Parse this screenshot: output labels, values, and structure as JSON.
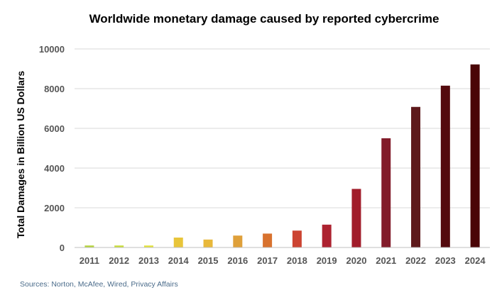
{
  "chart_data": {
    "type": "bar",
    "title": "Worldwide monetary damage caused by reported cybercrime",
    "xlabel": "",
    "ylabel": "Total Damages in Billion US Dollars",
    "categories": [
      "2011",
      "2012",
      "2013",
      "2014",
      "2015",
      "2016",
      "2017",
      "2018",
      "2019",
      "2020",
      "2021",
      "2022",
      "2023",
      "2024"
    ],
    "values": [
      100,
      100,
      100,
      500,
      400,
      600,
      700,
      850,
      1150,
      2950,
      5500,
      7080,
      8150,
      9220
    ],
    "colors": [
      "#b5d33c",
      "#c8dd3a",
      "#e2e23c",
      "#e8c53a",
      "#e8b83a",
      "#dfa03a",
      "#d8722e",
      "#cc4432",
      "#ad2230",
      "#a11c2a",
      "#821c2a",
      "#5e1a1c",
      "#540a0e",
      "#4a0507"
    ],
    "ylim": [
      0,
      10000
    ],
    "yticks": [
      0,
      2000,
      4000,
      6000,
      8000,
      10000
    ],
    "grid": true,
    "legend": "none",
    "source": "Sources: Norton, McAfee, Wired, Privacy Affairs"
  }
}
